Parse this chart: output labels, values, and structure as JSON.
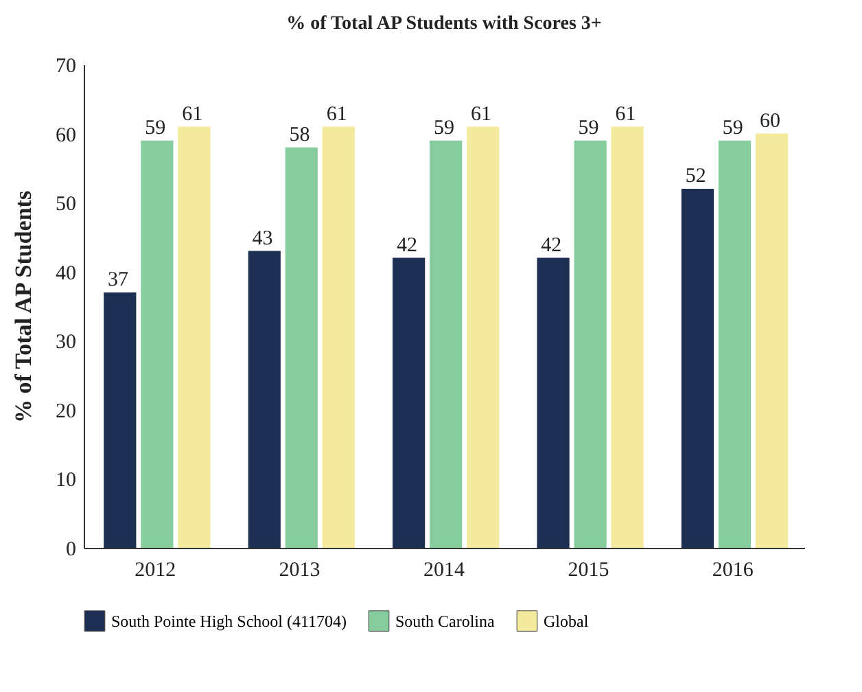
{
  "chart_data": {
    "type": "bar",
    "title": "% of Total AP Students with Scores 3+",
    "ylabel": "% of Total AP Students",
    "categories": [
      "2012",
      "2013",
      "2014",
      "2015",
      "2016"
    ],
    "series": [
      {
        "name": "South Pointe High School (411704)",
        "color": "#1d2f52",
        "values": [
          37,
          43,
          42,
          42,
          52
        ]
      },
      {
        "name": "South Carolina",
        "color": "#86cc9c",
        "values": [
          59,
          58,
          59,
          59,
          59
        ]
      },
      {
        "name": "Global",
        "color": "#f4ea9e",
        "values": [
          61,
          61,
          61,
          61,
          60
        ]
      }
    ],
    "ylim": [
      0,
      70
    ],
    "yticks": [
      0,
      10,
      20,
      30,
      40,
      50,
      60,
      70
    ],
    "grid": false,
    "legend": "bottom left",
    "data_labels": true
  }
}
